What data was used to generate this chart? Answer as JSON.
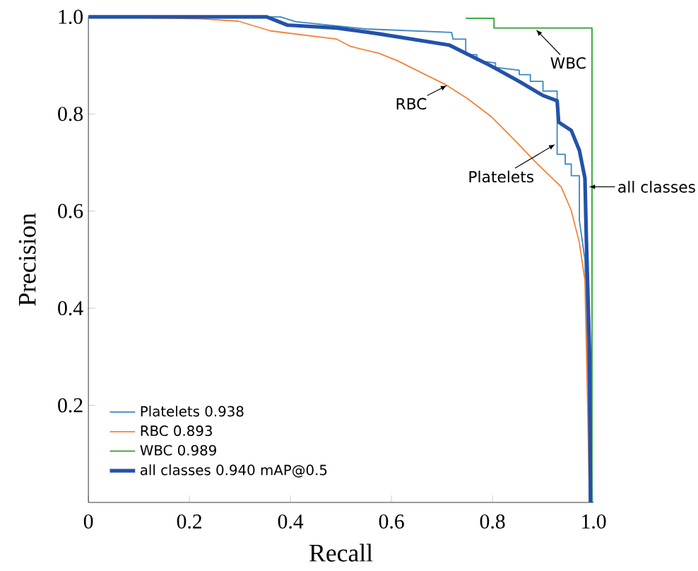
{
  "chart_data": {
    "type": "line",
    "xlabel": "Recall",
    "ylabel": "Precision",
    "xlim": [
      0,
      1
    ],
    "ylim": [
      0,
      1
    ],
    "xticks": [
      0,
      0.2,
      0.4,
      0.6,
      0.8,
      {
        "value": 1,
        "label": "1.0"
      }
    ],
    "yticks": [
      0.2,
      0.4,
      0.6,
      0.8,
      {
        "value": 1,
        "label": "1.0"
      }
    ],
    "tick_labels": "xy",
    "legend": "bottom left",
    "series": [
      {
        "name": "Platelets 0.938",
        "color": "#3b86c4",
        "x": [
          0,
          0.38,
          0.41,
          0.55,
          0.719,
          0.722,
          0.747,
          0.747,
          0.769,
          0.769,
          0.806,
          0.806,
          0.853,
          0.853,
          0.875,
          0.875,
          0.9,
          0.9,
          0.928,
          0.928,
          0.944,
          0.944,
          0.956,
          0.956,
          0.972,
          0.972,
          0.983,
          0.99,
          0.994
        ],
        "values": [
          1,
          1,
          0.99,
          0.975,
          0.968,
          0.954,
          0.954,
          0.922,
          0.922,
          0.91,
          0.905,
          0.896,
          0.89,
          0.881,
          0.881,
          0.867,
          0.867,
          0.847,
          0.847,
          0.717,
          0.717,
          0.697,
          0.697,
          0.673,
          0.673,
          0.581,
          0.5,
          0.2,
          0
        ]
      },
      {
        "name": "RBC 0.893",
        "color": "#f5823a",
        "x": [
          0,
          0.222,
          0.297,
          0.361,
          0.492,
          0.519,
          0.575,
          0.611,
          0.706,
          0.75,
          0.797,
          0.844,
          0.889,
          0.936,
          0.956,
          0.972,
          0.983,
          0.989,
          0.992
        ],
        "values": [
          1,
          0.996,
          0.991,
          0.971,
          0.954,
          0.939,
          0.925,
          0.91,
          0.861,
          0.832,
          0.795,
          0.746,
          0.697,
          0.65,
          0.601,
          0.535,
          0.457,
          0.168,
          0
        ]
      },
      {
        "name": "WBC 0.989",
        "color": "#2ca02c",
        "x": [
          0.747,
          0.803,
          0.803,
          0.997,
          0.997
        ],
        "values": [
          0.997,
          0.997,
          0.977,
          0.977,
          0
        ]
      },
      {
        "name": "all classes 0.940 mAP@0.5",
        "color": "#2352a8",
        "x": [
          0,
          0.353,
          0.394,
          0.492,
          0.575,
          0.714,
          0.747,
          0.797,
          0.853,
          0.9,
          0.928,
          0.931,
          0.956,
          0.972,
          0.983,
          0.986,
          0.992,
          0.994
        ],
        "values": [
          1,
          1,
          0.983,
          0.977,
          0.965,
          0.942,
          0.925,
          0.899,
          0.867,
          0.838,
          0.827,
          0.783,
          0.766,
          0.725,
          0.668,
          0.535,
          0.312,
          0
        ]
      }
    ],
    "annotations": [
      {
        "text": "WBC",
        "x": 0.883,
        "y": 0.977
      },
      {
        "text": "RBC",
        "x": 0.714,
        "y": 0.861
      },
      {
        "text": "Platelets",
        "x": 0.928,
        "y": 0.74
      },
      {
        "text": "all classes",
        "x": 0.986,
        "y": 0.65
      }
    ]
  }
}
